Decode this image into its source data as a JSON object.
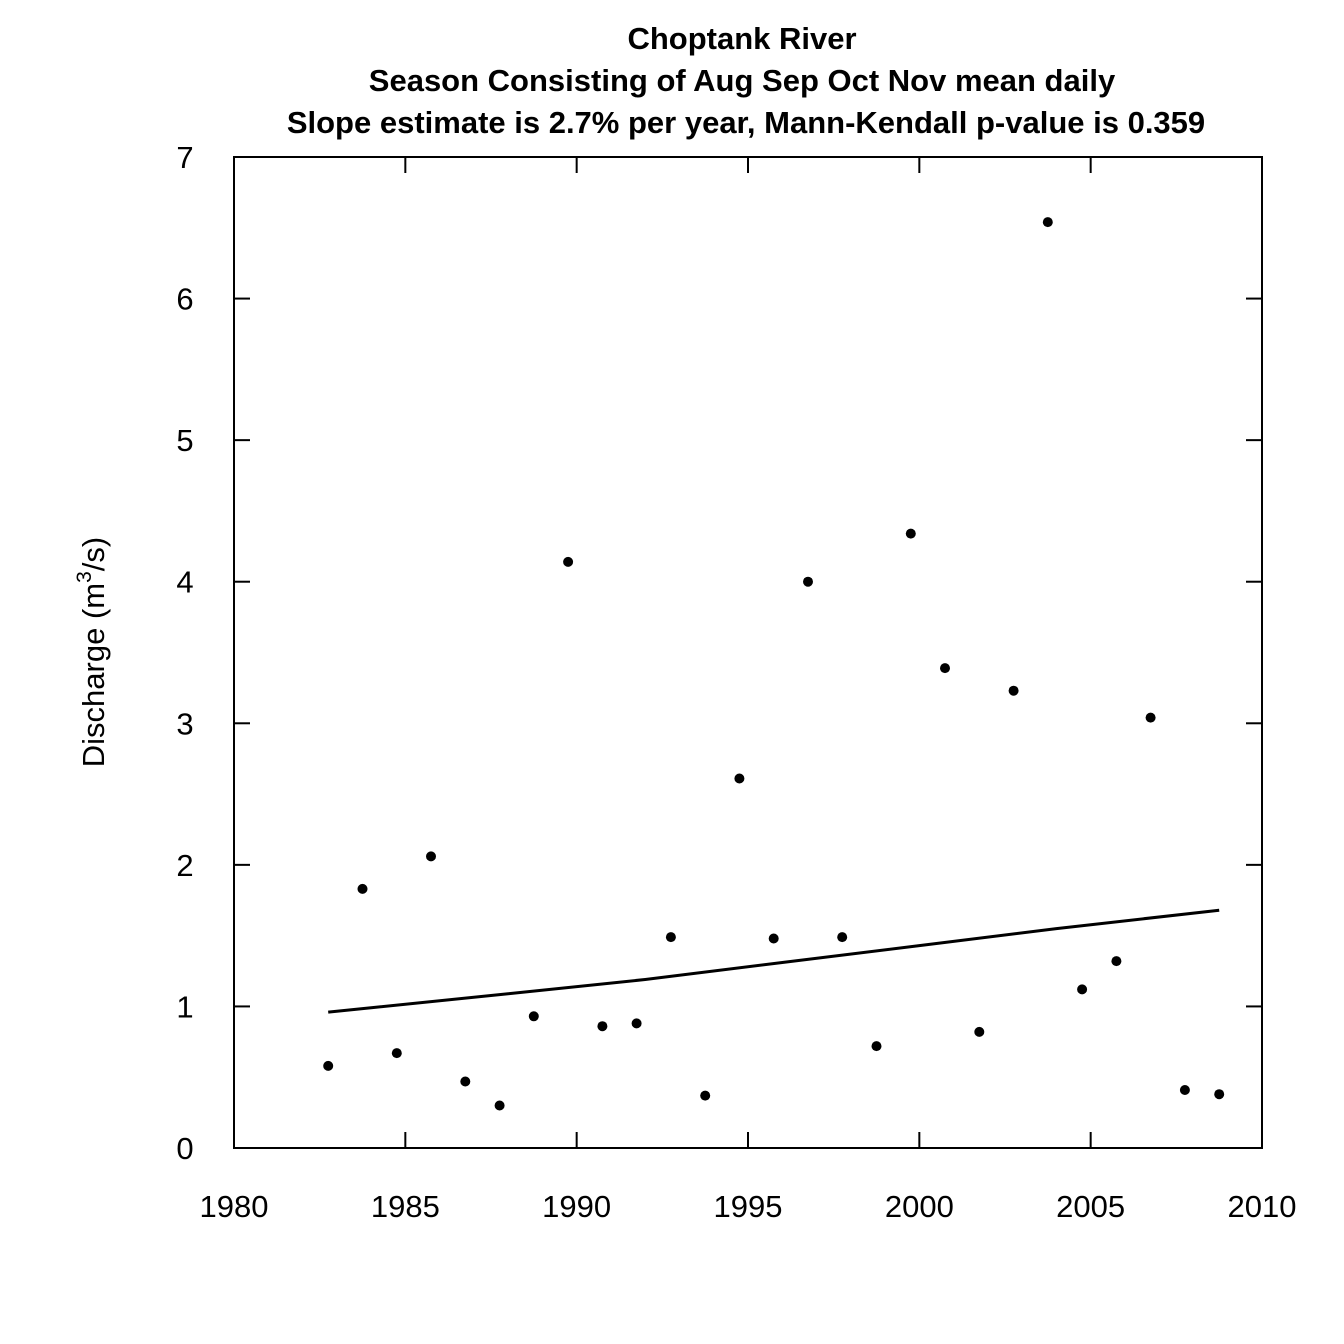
{
  "chart_data": {
    "type": "scatter",
    "title": "Choptank River",
    "subtitle_1": "Season Consisting of Aug Sep Oct Nov  mean daily",
    "subtitle_2": "Slope estimate is 2.7% per year, Mann-Kendall p-value is 0.359",
    "xlabel": "",
    "ylabel": "Discharge (m",
    "ylabel_superscript": "3",
    "ylabel_suffix": "/s)",
    "xlim": [
      1980,
      2010
    ],
    "ylim": [
      0,
      7
    ],
    "xticks": [
      "1980",
      "1985",
      "1990",
      "1995",
      "2000",
      "2005",
      "2010"
    ],
    "yticks": [
      "0",
      "1",
      "2",
      "3",
      "4",
      "5",
      "6",
      "7"
    ],
    "grid": false,
    "legend": "none",
    "points": [
      {
        "x": 1982.75,
        "y": 0.58
      },
      {
        "x": 1983.75,
        "y": 1.83
      },
      {
        "x": 1984.75,
        "y": 0.67
      },
      {
        "x": 1985.75,
        "y": 2.06
      },
      {
        "x": 1986.75,
        "y": 0.47
      },
      {
        "x": 1987.75,
        "y": 0.3
      },
      {
        "x": 1988.75,
        "y": 0.93
      },
      {
        "x": 1989.75,
        "y": 4.14
      },
      {
        "x": 1990.75,
        "y": 0.86
      },
      {
        "x": 1991.75,
        "y": 0.88
      },
      {
        "x": 1992.75,
        "y": 1.49
      },
      {
        "x": 1993.75,
        "y": 0.37
      },
      {
        "x": 1994.75,
        "y": 2.61
      },
      {
        "x": 1995.75,
        "y": 1.48
      },
      {
        "x": 1996.75,
        "y": 4.0
      },
      {
        "x": 1997.75,
        "y": 1.49
      },
      {
        "x": 1998.75,
        "y": 0.72
      },
      {
        "x": 1999.75,
        "y": 4.34
      },
      {
        "x": 2000.75,
        "y": 3.39
      },
      {
        "x": 2001.75,
        "y": 0.82
      },
      {
        "x": 2002.75,
        "y": 3.23
      },
      {
        "x": 2003.75,
        "y": 6.54
      },
      {
        "x": 2004.75,
        "y": 1.12
      },
      {
        "x": 2005.75,
        "y": 1.32
      },
      {
        "x": 2006.75,
        "y": 3.04
      },
      {
        "x": 2007.75,
        "y": 0.41
      },
      {
        "x": 2008.75,
        "y": 0.38
      }
    ],
    "trend_line": [
      {
        "x": 1982.75,
        "y": 0.96
      },
      {
        "x": 1984.0,
        "y": 0.99
      },
      {
        "x": 1988.0,
        "y": 1.09
      },
      {
        "x": 1992.0,
        "y": 1.19
      },
      {
        "x": 1996.0,
        "y": 1.31
      },
      {
        "x": 2000.0,
        "y": 1.43
      },
      {
        "x": 2004.0,
        "y": 1.55
      },
      {
        "x": 2008.75,
        "y": 1.68
      }
    ]
  }
}
